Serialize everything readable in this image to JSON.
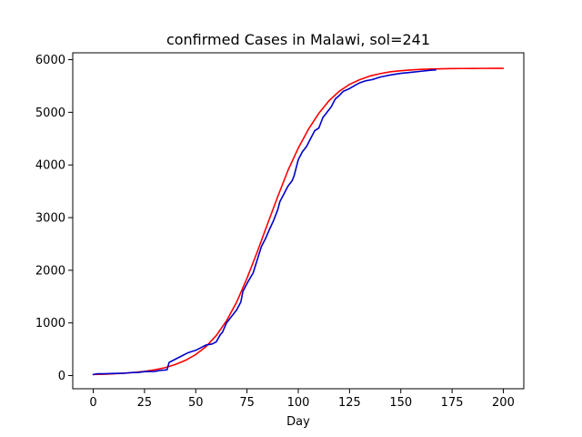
{
  "chart_data": {
    "type": "line",
    "title": "confirmed Cases in Malawi, sol=241",
    "xlabel": "Day",
    "ylabel": "",
    "xlim": [
      -10,
      210
    ],
    "ylim": [
      -250,
      6130
    ],
    "xticks": [
      0,
      25,
      50,
      75,
      100,
      125,
      150,
      175,
      200
    ],
    "yticks": [
      0,
      1000,
      2000,
      3000,
      4000,
      5000,
      6000
    ],
    "grid": false,
    "legend": "none",
    "series": [
      {
        "color": "#ff0000",
        "kind": "logistic-fit",
        "x": [
          0,
          5,
          10,
          15,
          20,
          25,
          30,
          35,
          40,
          45,
          50,
          55,
          60,
          65,
          70,
          75,
          80,
          85,
          90,
          95,
          100,
          105,
          110,
          115,
          120,
          125,
          130,
          135,
          140,
          145,
          150,
          155,
          160,
          165,
          170,
          175,
          180,
          185,
          190,
          195,
          200
        ],
        "y": [
          20,
          25,
          35,
          45,
          60,
          80,
          110,
          150,
          210,
          290,
          400,
          550,
          760,
          1040,
          1400,
          1850,
          2350,
          2880,
          3400,
          3900,
          4320,
          4680,
          4980,
          5220,
          5400,
          5530,
          5620,
          5690,
          5735,
          5770,
          5790,
          5805,
          5815,
          5822,
          5827,
          5830,
          5832,
          5833,
          5834,
          5835,
          5835
        ]
      },
      {
        "color": "#0000cc",
        "kind": "observed",
        "x": [
          0,
          2,
          5,
          10,
          15,
          18,
          22,
          25,
          30,
          33,
          35,
          36,
          37,
          40,
          43,
          46,
          50,
          53,
          55,
          58,
          60,
          62,
          63,
          65,
          67,
          70,
          72,
          73,
          75,
          78,
          80,
          82,
          84,
          86,
          88,
          90,
          91,
          93,
          95,
          97,
          98,
          100,
          102,
          104,
          106,
          108,
          110,
          112,
          114,
          116,
          118,
          120,
          122,
          125,
          128,
          130,
          133,
          136,
          140,
          145,
          150,
          155,
          160,
          165,
          167
        ],
        "y": [
          20,
          35,
          35,
          40,
          45,
          55,
          60,
          75,
          80,
          100,
          105,
          110,
          250,
          310,
          370,
          430,
          480,
          540,
          580,
          600,
          640,
          780,
          820,
          1000,
          1100,
          1250,
          1400,
          1600,
          1750,
          1950,
          2200,
          2450,
          2600,
          2780,
          2950,
          3150,
          3300,
          3450,
          3600,
          3700,
          3800,
          4100,
          4250,
          4350,
          4500,
          4650,
          4700,
          4900,
          5000,
          5100,
          5250,
          5320,
          5400,
          5450,
          5520,
          5560,
          5600,
          5620,
          5670,
          5710,
          5740,
          5760,
          5780,
          5800,
          5805
        ]
      }
    ]
  }
}
